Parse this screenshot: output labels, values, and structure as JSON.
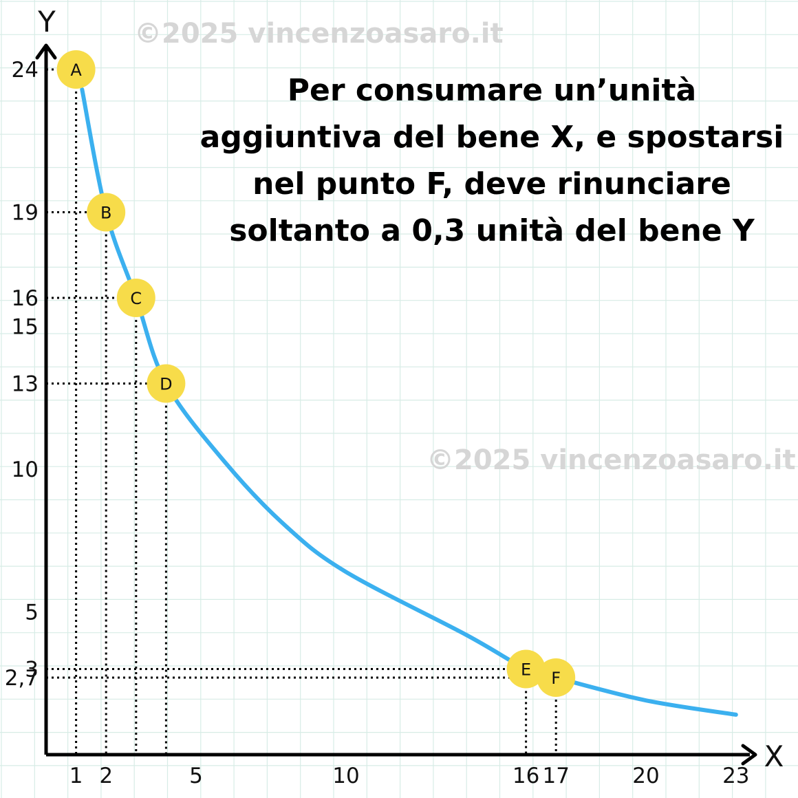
{
  "chart_data": {
    "type": "line",
    "title": "",
    "xlabel": "X",
    "ylabel": "Y",
    "xlim": [
      0,
      25
    ],
    "ylim": [
      0,
      25
    ],
    "x_ticks": [
      {
        "value": 1,
        "label": "1"
      },
      {
        "value": 2,
        "label": "2"
      },
      {
        "value": 5,
        "label": "5"
      },
      {
        "value": 10,
        "label": "10"
      },
      {
        "value": 16,
        "label": "16"
      },
      {
        "value": 17,
        "label": "17"
      },
      {
        "value": 20,
        "label": "20"
      },
      {
        "value": 23,
        "label": "23"
      }
    ],
    "y_ticks": [
      {
        "value": 24,
        "label": "24"
      },
      {
        "value": 19,
        "label": "19"
      },
      {
        "value": 16,
        "label": "16"
      },
      {
        "value": 15,
        "label": "15"
      },
      {
        "value": 13,
        "label": "13"
      },
      {
        "value": 10,
        "label": "10"
      },
      {
        "value": 5,
        "label": "5"
      },
      {
        "value": 3,
        "label": "3"
      },
      {
        "value": 2.7,
        "label": "2,7"
      }
    ],
    "curve": {
      "color": "#3bb0ef",
      "points": [
        [
          1.2,
          23.3
        ],
        [
          2,
          19
        ],
        [
          3,
          16
        ],
        [
          4,
          13
        ],
        [
          6,
          10.2
        ],
        [
          8,
          8
        ],
        [
          10,
          6.4
        ],
        [
          14,
          4.2
        ],
        [
          16,
          3
        ],
        [
          17,
          2.7
        ],
        [
          20,
          1.9
        ],
        [
          23,
          1.4
        ]
      ]
    },
    "points": [
      {
        "label": "A",
        "x": 1,
        "y": 24
      },
      {
        "label": "B",
        "x": 2,
        "y": 19
      },
      {
        "label": "C",
        "x": 3,
        "y": 16
      },
      {
        "label": "D",
        "x": 4,
        "y": 13
      },
      {
        "label": "E",
        "x": 16,
        "y": 3
      },
      {
        "label": "F",
        "x": 17,
        "y": 2.7
      }
    ],
    "point_color": "#f7dc4a",
    "grid": true,
    "grid_color": "#d7ece6",
    "annotation": "Per consumare un’unità aggiuntiva del bene X, e spostarsi nel punto F, deve rinunciare soltanto a 0,3 unità del bene Y"
  },
  "watermark": "©2025 vincenzoasaro.it"
}
